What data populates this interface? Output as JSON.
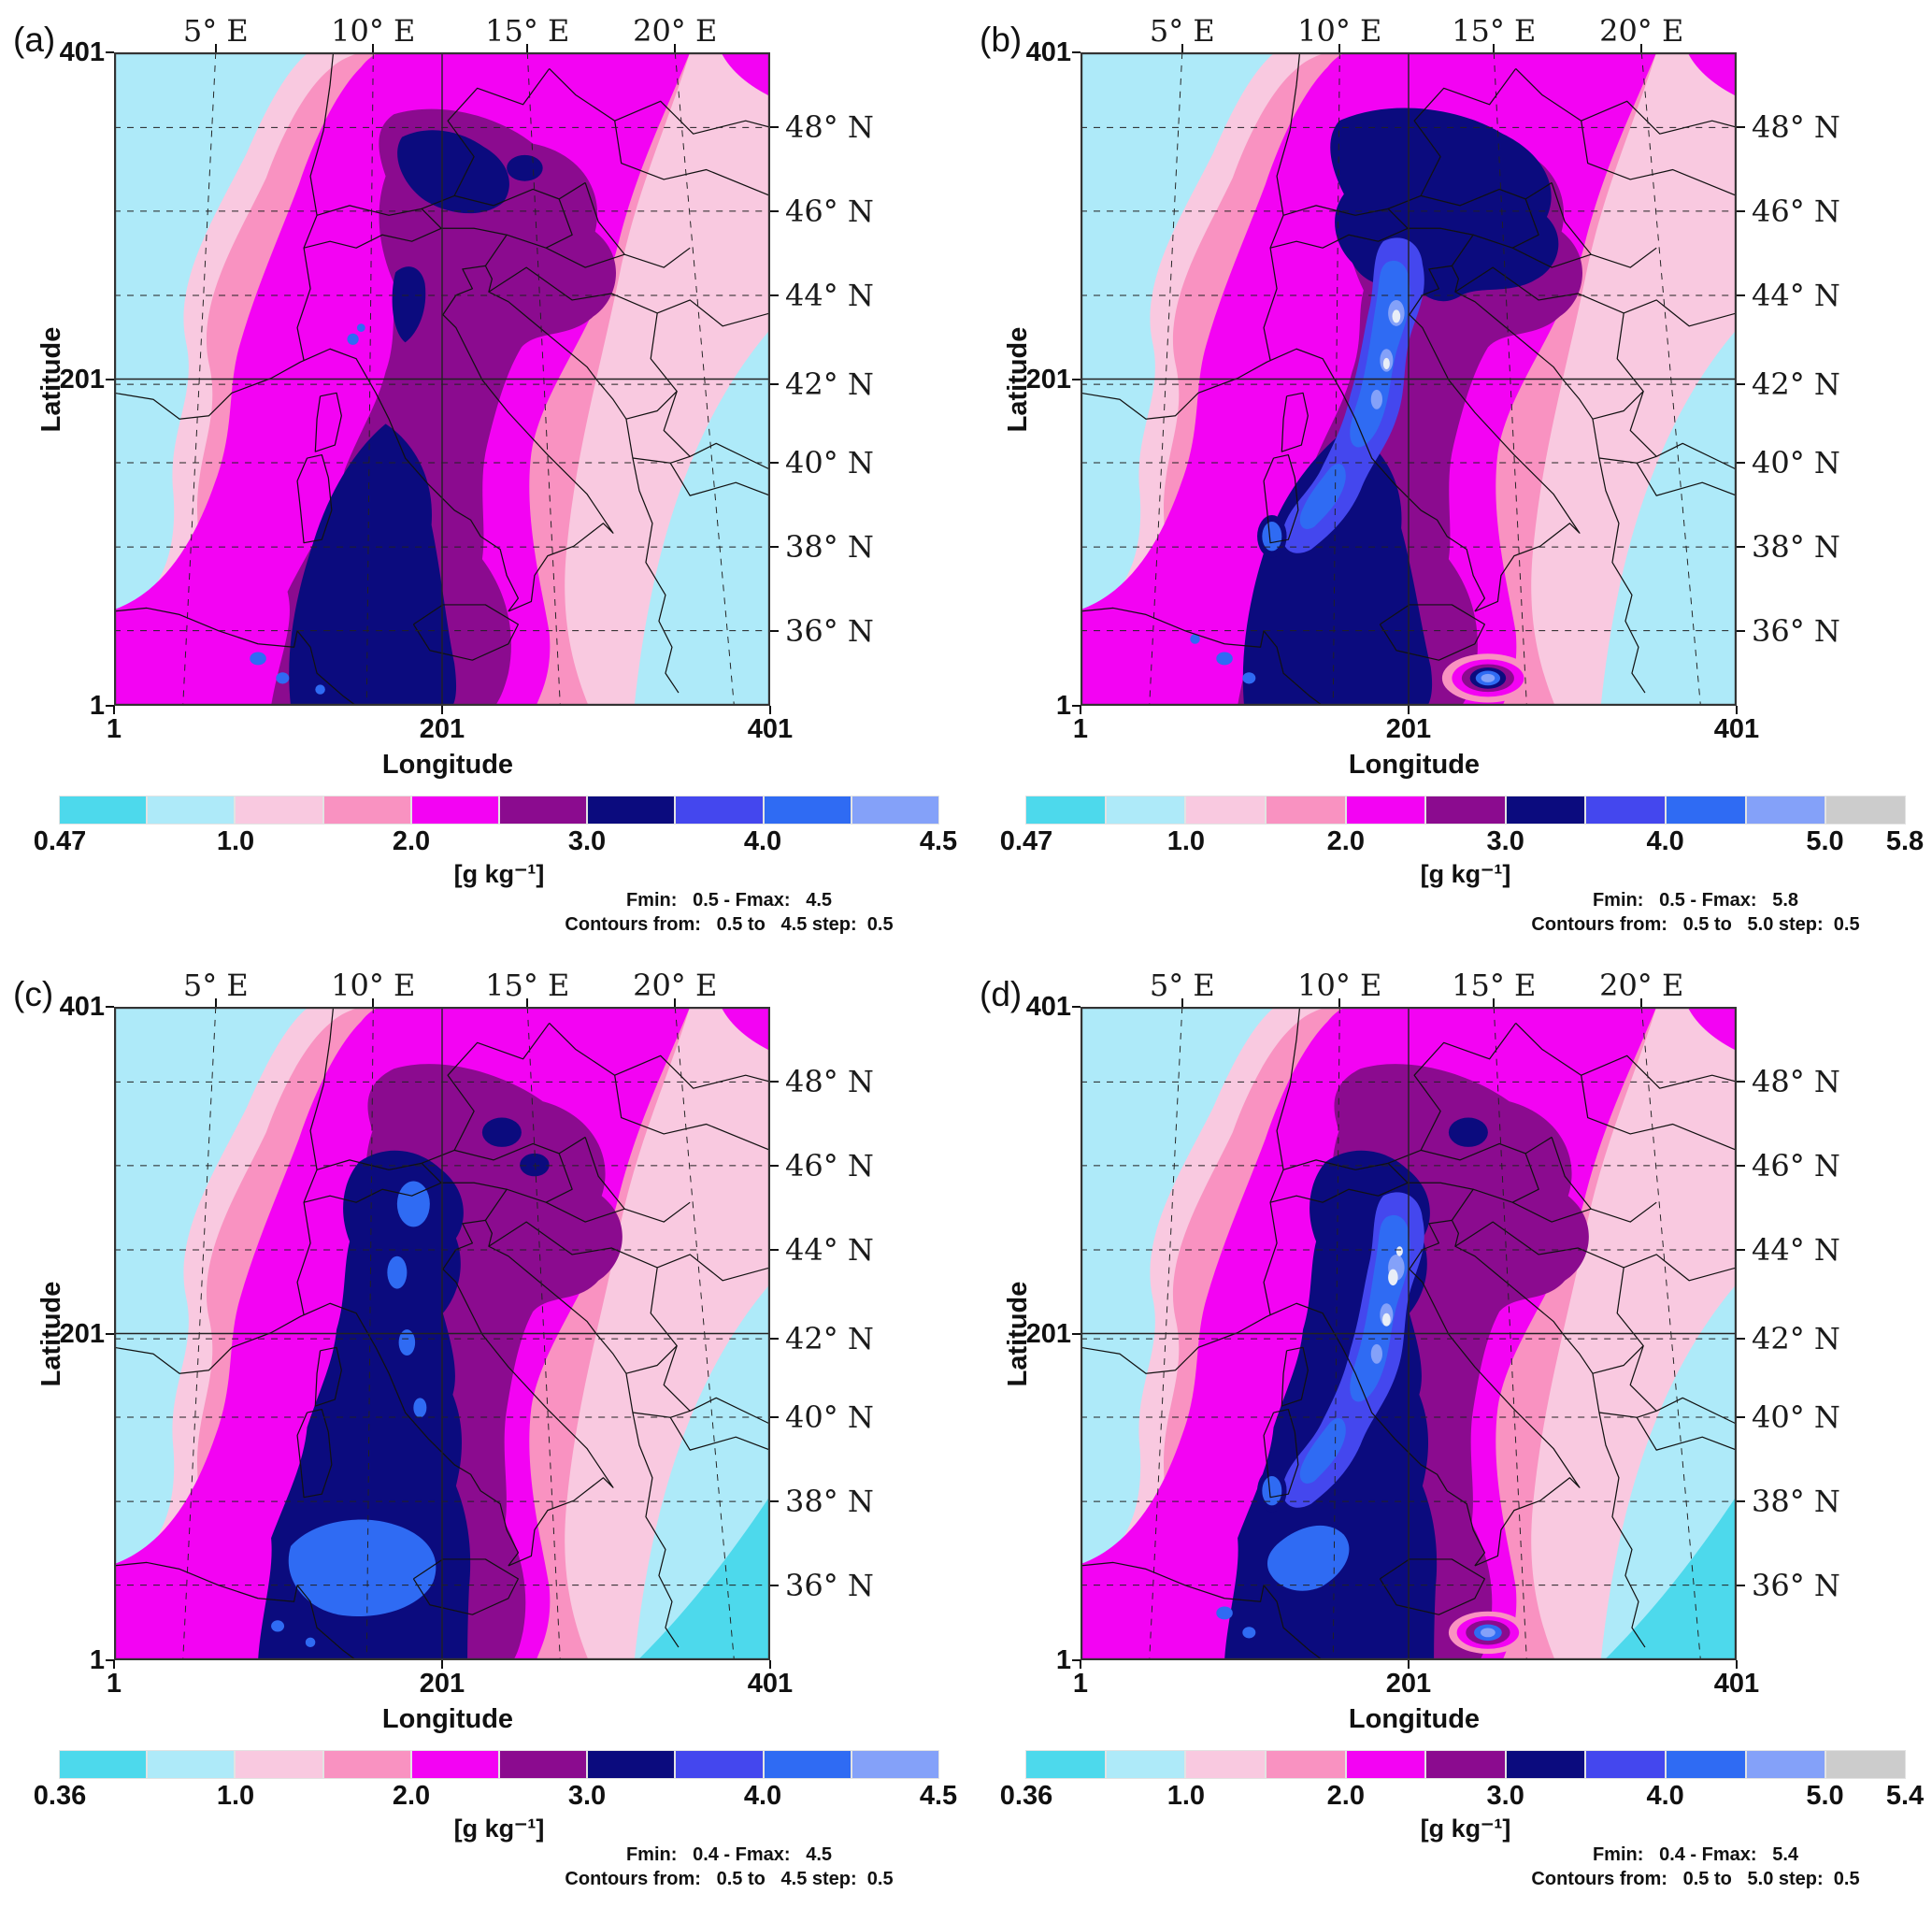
{
  "figure": {
    "background": "#ffffff",
    "palette": {
      "c0": "#4dd9ec",
      "c1": "#aeeaf9",
      "c2": "#f9c9e0",
      "c3": "#f992c1",
      "c4": "#f303f3",
      "c5": "#8b0b8f",
      "c6": "#0b0b7e",
      "c7": "#4447ee",
      "c8": "#2f6bf3",
      "c9": "#84a1f9",
      "c10": "#cccccc",
      "core": "#e9eef7",
      "border_line": "#111111",
      "frame": "#333333"
    },
    "panels": [
      {
        "letter": "(a)",
        "axis": {
          "x_label": "Longitude",
          "y_label": "Latitude",
          "x_ticks": [
            "1",
            "201",
            "401"
          ],
          "y_ticks": [
            "401",
            "201",
            "1"
          ],
          "top_labels": [
            "5° E",
            "10° E",
            "15° E",
            "20° E"
          ],
          "right_labels": [
            "48° N",
            "46° N",
            "44° N",
            "42° N",
            "40° N",
            "38° N",
            "36° N"
          ]
        },
        "colorbar": {
          "unit": "[g kg⁻¹]",
          "colors": [
            "#4dd9ec",
            "#aeeaf9",
            "#f9c9e0",
            "#f992c1",
            "#f303f3",
            "#8b0b8f",
            "#0b0b7e",
            "#4447ee",
            "#2f6bf3",
            "#84a1f9"
          ],
          "labels": [
            "0.47",
            "1.0",
            "2.0",
            "3.0",
            "4.0",
            "4.5"
          ],
          "label_boundaries": [
            0,
            2,
            4,
            6,
            8,
            10
          ]
        },
        "stats": {
          "fmin_line": "Fmin:   0.5 - Fmax:   4.5",
          "contours_line": "Contours from:   0.5 to   4.5 step:  0.5"
        }
      },
      {
        "letter": "(b)",
        "axis": {
          "x_label": "Longitude",
          "y_label": "Latitude",
          "x_ticks": [
            "1",
            "201",
            "401"
          ],
          "y_ticks": [
            "401",
            "201",
            "1"
          ],
          "top_labels": [
            "5° E",
            "10° E",
            "15° E",
            "20° E"
          ],
          "right_labels": [
            "48° N",
            "46° N",
            "44° N",
            "42° N",
            "40° N",
            "38° N",
            "36° N"
          ]
        },
        "colorbar": {
          "unit": "[g kg⁻¹]",
          "colors": [
            "#4dd9ec",
            "#aeeaf9",
            "#f9c9e0",
            "#f992c1",
            "#f303f3",
            "#8b0b8f",
            "#0b0b7e",
            "#4447ee",
            "#2f6bf3",
            "#84a1f9",
            "#cccccc"
          ],
          "labels": [
            "0.47",
            "1.0",
            "2.0",
            "3.0",
            "4.0",
            "5.0",
            "5.8"
          ],
          "label_boundaries": [
            0,
            2,
            4,
            6,
            8,
            10,
            11
          ]
        },
        "stats": {
          "fmin_line": "Fmin:   0.5 - Fmax:   5.8",
          "contours_line": "Contours from:   0.5 to   5.0 step:  0.5"
        }
      },
      {
        "letter": "(c)",
        "axis": {
          "x_label": "Longitude",
          "y_label": "Latitude",
          "x_ticks": [
            "1",
            "201",
            "401"
          ],
          "y_ticks": [
            "401",
            "201",
            "1"
          ],
          "top_labels": [
            "5° E",
            "10° E",
            "15° E",
            "20° E"
          ],
          "right_labels": [
            "48° N",
            "46° N",
            "44° N",
            "42° N",
            "40° N",
            "38° N",
            "36° N"
          ]
        },
        "colorbar": {
          "unit": "[g kg⁻¹]",
          "colors": [
            "#4dd9ec",
            "#aeeaf9",
            "#f9c9e0",
            "#f992c1",
            "#f303f3",
            "#8b0b8f",
            "#0b0b7e",
            "#4447ee",
            "#2f6bf3",
            "#84a1f9"
          ],
          "labels": [
            "0.36",
            "1.0",
            "2.0",
            "3.0",
            "4.0",
            "4.5"
          ],
          "label_boundaries": [
            0,
            2,
            4,
            6,
            8,
            10
          ]
        },
        "stats": {
          "fmin_line": "Fmin:   0.4 - Fmax:   4.5",
          "contours_line": "Contours from:   0.5 to   4.5 step:  0.5"
        }
      },
      {
        "letter": "(d)",
        "axis": {
          "x_label": "Longitude",
          "y_label": "Latitude",
          "x_ticks": [
            "1",
            "201",
            "401"
          ],
          "y_ticks": [
            "401",
            "201",
            "1"
          ],
          "top_labels": [
            "5° E",
            "10° E",
            "15° E",
            "20° E"
          ],
          "right_labels": [
            "48° N",
            "46° N",
            "44° N",
            "42° N",
            "40° N",
            "38° N",
            "36° N"
          ]
        },
        "colorbar": {
          "unit": "[g kg⁻¹]",
          "colors": [
            "#4dd9ec",
            "#aeeaf9",
            "#f9c9e0",
            "#f992c1",
            "#f303f3",
            "#8b0b8f",
            "#0b0b7e",
            "#4447ee",
            "#2f6bf3",
            "#84a1f9",
            "#cccccc"
          ],
          "labels": [
            "0.36",
            "1.0",
            "2.0",
            "3.0",
            "4.0",
            "5.0",
            "5.4"
          ],
          "label_boundaries": [
            0,
            2,
            4,
            6,
            8,
            10,
            11
          ]
        },
        "stats": {
          "fmin_line": "Fmin:   0.4 - Fmax:   5.4",
          "contours_line": "Contours from:   0.5 to   5.0 step:  0.5"
        }
      }
    ]
  },
  "chart_data": [
    {
      "type": "heatmap",
      "subtype": "filled_contour_map",
      "panel": "a",
      "xlabel": "Longitude",
      "ylabel": "Latitude",
      "xlim": [
        1,
        401
      ],
      "ylim": [
        1,
        401
      ],
      "x_ticks": [
        1,
        201,
        401
      ],
      "y_ticks": [
        1,
        201,
        401
      ],
      "top_axis_longitude_labels": [
        "5° E",
        "10° E",
        "15° E",
        "20° E"
      ],
      "right_axis_latitude_labels": [
        "48° N",
        "46° N",
        "44° N",
        "42° N",
        "40° N",
        "38° N",
        "36° N"
      ],
      "units": "g kg-1",
      "field_min": 0.5,
      "field_max": 4.5,
      "contour_from": 0.5,
      "contour_to": 4.5,
      "contour_step": 0.5,
      "contour_levels": [
        0.5,
        1.0,
        1.5,
        2.0,
        2.5,
        3.0,
        3.5,
        4.0,
        4.5
      ],
      "colorbar_tick_labels": [
        0.47,
        1.0,
        2.0,
        3.0,
        4.0,
        4.5
      ],
      "colorbar_colors": [
        "#4dd9ec",
        "#aeeaf9",
        "#f9c9e0",
        "#f992c1",
        "#f303f3",
        "#8b0b8f",
        "#0b0b7e",
        "#4447ee",
        "#2f6bf3",
        "#84a1f9"
      ],
      "annotations": [
        "Fmin: 0.5 - Fmax: 4.5",
        "Contours from: 0.5 to 4.5 step: 0.5"
      ],
      "grid": "solid center cross at gridpoint 201 plus dashed lat/lon graticule",
      "legend_position": "horizontal colorbar below map"
    },
    {
      "type": "heatmap",
      "subtype": "filled_contour_map",
      "panel": "b",
      "xlabel": "Longitude",
      "ylabel": "Latitude",
      "xlim": [
        1,
        401
      ],
      "ylim": [
        1,
        401
      ],
      "x_ticks": [
        1,
        201,
        401
      ],
      "y_ticks": [
        1,
        201,
        401
      ],
      "top_axis_longitude_labels": [
        "5° E",
        "10° E",
        "15° E",
        "20° E"
      ],
      "right_axis_latitude_labels": [
        "48° N",
        "46° N",
        "44° N",
        "42° N",
        "40° N",
        "38° N",
        "36° N"
      ],
      "units": "g kg-1",
      "field_min": 0.5,
      "field_max": 5.8,
      "contour_from": 0.5,
      "contour_to": 5.0,
      "contour_step": 0.5,
      "contour_levels": [
        0.5,
        1.0,
        1.5,
        2.0,
        2.5,
        3.0,
        3.5,
        4.0,
        4.5,
        5.0
      ],
      "colorbar_tick_labels": [
        0.47,
        1.0,
        2.0,
        3.0,
        4.0,
        5.0,
        5.8
      ],
      "colorbar_colors": [
        "#4dd9ec",
        "#aeeaf9",
        "#f9c9e0",
        "#f992c1",
        "#f303f3",
        "#8b0b8f",
        "#0b0b7e",
        "#4447ee",
        "#2f6bf3",
        "#84a1f9",
        "#cccccc"
      ],
      "annotations": [
        "Fmin: 0.5 - Fmax: 5.8",
        "Contours from: 0.5 to 5.0 step: 0.5"
      ],
      "grid": "solid center cross at gridpoint 201 plus dashed lat/lon graticule",
      "legend_position": "horizontal colorbar below map"
    },
    {
      "type": "heatmap",
      "subtype": "filled_contour_map",
      "panel": "c",
      "xlabel": "Longitude",
      "ylabel": "Latitude",
      "xlim": [
        1,
        401
      ],
      "ylim": [
        1,
        401
      ],
      "x_ticks": [
        1,
        201,
        401
      ],
      "y_ticks": [
        1,
        201,
        401
      ],
      "top_axis_longitude_labels": [
        "5° E",
        "10° E",
        "15° E",
        "20° E"
      ],
      "right_axis_latitude_labels": [
        "48° N",
        "46° N",
        "44° N",
        "42° N",
        "40° N",
        "38° N",
        "36° N"
      ],
      "units": "g kg-1",
      "field_min": 0.4,
      "field_max": 4.5,
      "contour_from": 0.5,
      "contour_to": 4.5,
      "contour_step": 0.5,
      "contour_levels": [
        0.5,
        1.0,
        1.5,
        2.0,
        2.5,
        3.0,
        3.5,
        4.0,
        4.5
      ],
      "colorbar_tick_labels": [
        0.36,
        1.0,
        2.0,
        3.0,
        4.0,
        4.5
      ],
      "colorbar_colors": [
        "#4dd9ec",
        "#aeeaf9",
        "#f9c9e0",
        "#f992c1",
        "#f303f3",
        "#8b0b8f",
        "#0b0b7e",
        "#4447ee",
        "#2f6bf3",
        "#84a1f9"
      ],
      "annotations": [
        "Fmin: 0.4 - Fmax: 4.5",
        "Contours from: 0.5 to 4.5 step: 0.5"
      ],
      "grid": "solid center cross at gridpoint 201 plus dashed lat/lon graticule",
      "legend_position": "horizontal colorbar below map"
    },
    {
      "type": "heatmap",
      "subtype": "filled_contour_map",
      "panel": "d",
      "xlabel": "Longitude",
      "ylabel": "Latitude",
      "xlim": [
        1,
        401
      ],
      "ylim": [
        1,
        401
      ],
      "x_ticks": [
        1,
        201,
        401
      ],
      "y_ticks": [
        1,
        201,
        401
      ],
      "top_axis_longitude_labels": [
        "5° E",
        "10° E",
        "15° E",
        "20° E"
      ],
      "right_axis_latitude_labels": [
        "48° N",
        "46° N",
        "44° N",
        "42° N",
        "40° N",
        "38° N",
        "36° N"
      ],
      "units": "g kg-1",
      "field_min": 0.4,
      "field_max": 5.4,
      "contour_from": 0.5,
      "contour_to": 5.0,
      "contour_step": 0.5,
      "contour_levels": [
        0.5,
        1.0,
        1.5,
        2.0,
        2.5,
        3.0,
        3.5,
        4.0,
        4.5,
        5.0
      ],
      "colorbar_tick_labels": [
        0.36,
        1.0,
        2.0,
        3.0,
        4.0,
        5.0,
        5.4
      ],
      "colorbar_colors": [
        "#4dd9ec",
        "#aeeaf9",
        "#f9c9e0",
        "#f992c1",
        "#f303f3",
        "#8b0b8f",
        "#0b0b7e",
        "#4447ee",
        "#2f6bf3",
        "#84a1f9",
        "#cccccc"
      ],
      "annotations": [
        "Fmin: 0.4 - Fmax: 5.4",
        "Contours from: 0.5 to 5.0 step: 0.5"
      ],
      "grid": "solid center cross at gridpoint 201 plus dashed lat/lon graticule",
      "legend_position": "horizontal colorbar below map"
    }
  ]
}
